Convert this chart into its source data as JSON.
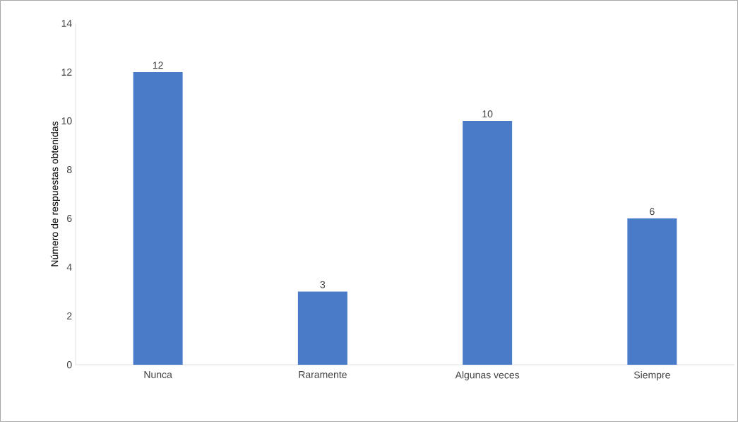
{
  "chart_data": {
    "type": "bar",
    "ylabel": "Número de respuestas obtenidas",
    "categories": [
      "Nunca",
      "Raramente",
      "Algunas veces",
      "Siempre"
    ],
    "values": [
      12,
      3,
      10,
      6
    ],
    "color": "#4a7bc8",
    "ylim": [
      0,
      14
    ],
    "yticks": [
      0,
      2,
      4,
      6,
      8,
      10,
      12,
      14
    ],
    "data_labels": true
  }
}
